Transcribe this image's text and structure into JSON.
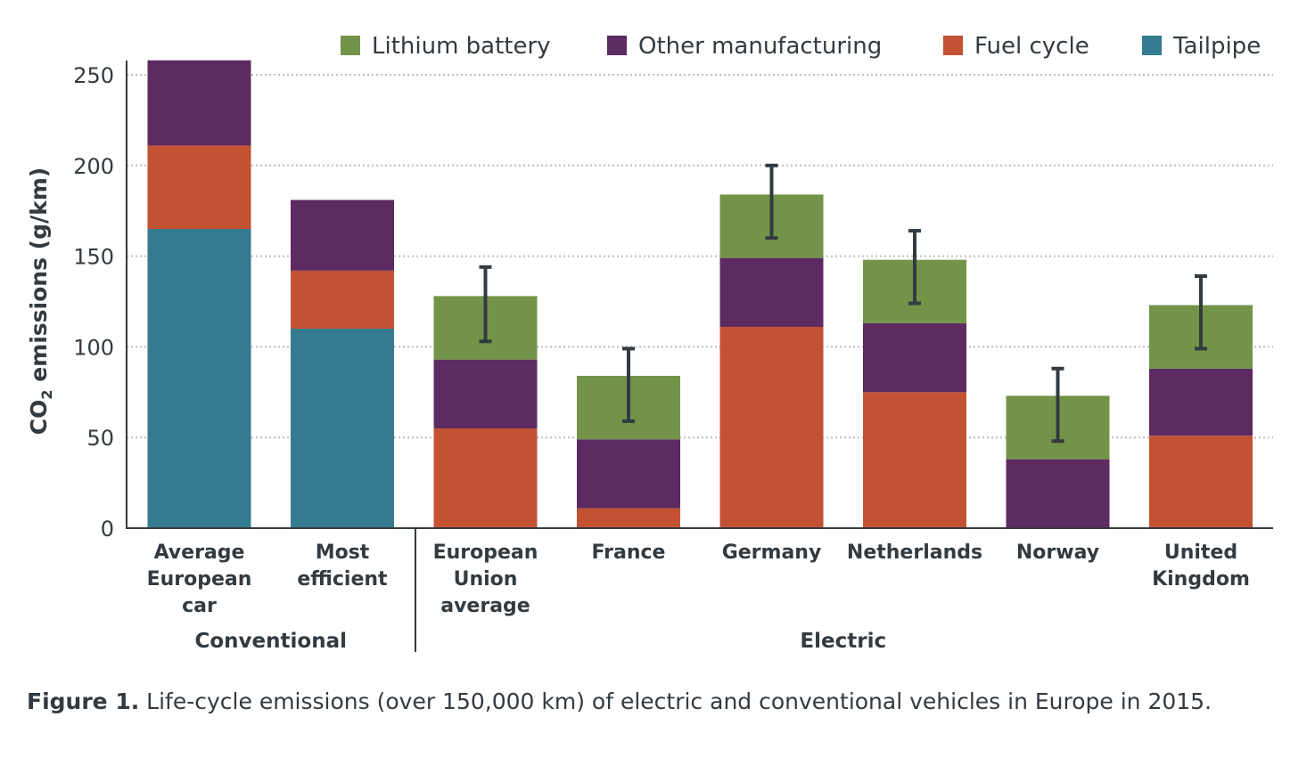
{
  "chart_data": {
    "type": "bar",
    "stacked": true,
    "ylabel_main": "CO",
    "ylabel_sub": "2",
    "ylabel_rest": " emissions (g/km)",
    "ylim": [
      0,
      260
    ],
    "yticks": [
      0,
      50,
      100,
      150,
      200,
      250
    ],
    "grid": "horizontal dotted",
    "legend_placement": "top-right",
    "categories": [
      [
        "Average",
        "European",
        "car"
      ],
      [
        "Most",
        "efficient"
      ],
      [
        "European",
        "Union",
        "average"
      ],
      [
        "France"
      ],
      [
        "Germany"
      ],
      [
        "Netherlands"
      ],
      [
        "Norway"
      ],
      [
        "United",
        "Kingdom"
      ]
    ],
    "groups": [
      {
        "label": "Conventional",
        "start": 0,
        "end": 1
      },
      {
        "label": "Electric",
        "start": 2,
        "end": 7
      }
    ],
    "series": [
      {
        "name": "Tailpipe",
        "color": "#347b8f",
        "values": [
          165,
          110,
          0,
          0,
          0,
          0,
          0,
          0
        ]
      },
      {
        "name": "Fuel cycle",
        "color": "#c35234",
        "values": [
          46,
          32,
          55,
          11,
          111,
          75,
          0,
          51
        ]
      },
      {
        "name": "Other manufacturing",
        "color": "#5d2a61",
        "values": [
          47,
          39,
          38,
          38,
          38,
          38,
          38,
          37
        ]
      },
      {
        "name": "Lithium battery",
        "color": "#739448",
        "values": [
          0,
          0,
          35,
          35,
          35,
          35,
          35,
          35
        ]
      }
    ],
    "error_bars": [
      null,
      null,
      [
        103,
        144
      ],
      [
        59,
        99
      ],
      [
        160,
        200
      ],
      [
        124,
        164
      ],
      [
        48,
        88
      ],
      [
        99,
        139
      ]
    ],
    "legend_order": [
      "Lithium battery",
      "Other manufacturing",
      "Fuel cycle",
      "Tailpipe"
    ]
  },
  "caption": {
    "bold": "Figure 1.",
    "text": " Life-cycle emissions (over 150,000 km) of electric and conventional vehicles in Europe in 2015."
  }
}
